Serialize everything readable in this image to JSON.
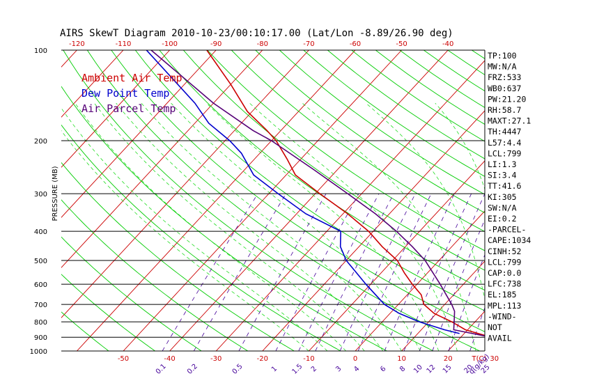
{
  "title": "AIRS SkewT Diagram 2010-10-23/00:10:17.00 (Lat/Lon -8.89/26.90 deg)",
  "colors": {
    "temperature": "#cc0000",
    "dewpoint": "#0000cc",
    "parcel": "#550077",
    "isotherm": "#cc0000",
    "dry_adiabat": "#00cc00",
    "moist_adiabat": "#22dd22",
    "mixing_ratio": "#440099",
    "isobar": "#000000"
  },
  "chart_data": {
    "type": "skewt",
    "title": "AIRS SkewT Diagram 2010-10-23/00:10:17.00 (Lat/Lon -8.89/26.90 deg)",
    "ylabel": "PRESSURE (MB)",
    "y_scale": "log",
    "ylim": [
      1000,
      100
    ],
    "pressure_ticks": [
      "100",
      "200",
      "300",
      "400",
      "500",
      "600",
      "700",
      "800",
      "900",
      "1000"
    ],
    "top_temperature_ticks": [
      "-120",
      "-110",
      "-100",
      "-90",
      "-80",
      "-70",
      "-60",
      "-50",
      "-40"
    ],
    "bottom_temperature_ticks": [
      "-50",
      "-40",
      "-30",
      "-20",
      "-10",
      "0",
      "10",
      "20",
      "30"
    ],
    "bottom_axis_unit": "T(C)",
    "mixing_ratio_ticks": [
      "0.1",
      "0.2",
      "0.5",
      "1",
      "1.5",
      "2",
      "3",
      "4",
      "6",
      "8",
      "10",
      "12",
      "15",
      "20",
      "25",
      "30",
      "40"
    ],
    "mixing_ratio_unit": "q(g/kg)",
    "legend": [
      {
        "name": "Ambient Air Temp",
        "color": "#cc0000"
      },
      {
        "name": "Dew Point Temp",
        "color": "#0000cc"
      },
      {
        "name": "Air Parcel Temp",
        "color": "#550077"
      }
    ],
    "series": [
      {
        "name": "Ambient Air Temp",
        "points": [
          {
            "p": 900,
            "t": 26.5
          },
          {
            "p": 850,
            "t": 19.5
          },
          {
            "p": 800,
            "t": 15
          },
          {
            "p": 750,
            "t": 9.5
          },
          {
            "p": 700,
            "t": 5.5
          },
          {
            "p": 650,
            "t": 3
          },
          {
            "p": 600,
            "t": -1
          },
          {
            "p": 550,
            "t": -5
          },
          {
            "p": 500,
            "t": -9
          },
          {
            "p": 450,
            "t": -15
          },
          {
            "p": 400,
            "t": -21
          },
          {
            "p": 350,
            "t": -29
          },
          {
            "p": 300,
            "t": -39
          },
          {
            "p": 260,
            "t": -48
          },
          {
            "p": 230,
            "t": -53
          },
          {
            "p": 200,
            "t": -59
          },
          {
            "p": 185,
            "t": -63
          },
          {
            "p": 160,
            "t": -71
          },
          {
            "p": 130,
            "t": -80
          },
          {
            "p": 100,
            "t": -92
          }
        ]
      },
      {
        "name": "Dew Point Temp",
        "points": [
          {
            "p": 875,
            "t": 19
          },
          {
            "p": 850,
            "t": 15
          },
          {
            "p": 800,
            "t": 8
          },
          {
            "p": 750,
            "t": 2
          },
          {
            "p": 700,
            "t": -3
          },
          {
            "p": 600,
            "t": -11
          },
          {
            "p": 500,
            "t": -20
          },
          {
            "p": 450,
            "t": -24
          },
          {
            "p": 400,
            "t": -27
          },
          {
            "p": 350,
            "t": -38
          },
          {
            "p": 300,
            "t": -48
          },
          {
            "p": 260,
            "t": -57
          },
          {
            "p": 220,
            "t": -64
          },
          {
            "p": 200,
            "t": -69
          },
          {
            "p": 175,
            "t": -77
          },
          {
            "p": 150,
            "t": -84
          },
          {
            "p": 100,
            "t": -105
          }
        ]
      },
      {
        "name": "Air Parcel Temp",
        "points": [
          {
            "p": 900,
            "t": 26.5
          },
          {
            "p": 850,
            "t": 17
          },
          {
            "p": 800,
            "t": 15.5
          },
          {
            "p": 738,
            "t": 13.5
          },
          {
            "p": 700,
            "t": 11.5
          },
          {
            "p": 600,
            "t": 5
          },
          {
            "p": 500,
            "t": -3
          },
          {
            "p": 450,
            "t": -8.5
          },
          {
            "p": 400,
            "t": -15
          },
          {
            "p": 350,
            "t": -23
          },
          {
            "p": 300,
            "t": -33
          },
          {
            "p": 250,
            "t": -45
          },
          {
            "p": 200,
            "t": -60
          },
          {
            "p": 185,
            "t": -66
          },
          {
            "p": 150,
            "t": -80
          },
          {
            "p": 100,
            "t": -104
          }
        ]
      }
    ]
  },
  "indices": [
    "TP:100",
    "MW:N/A",
    "FRZ:533",
    "WB0:637",
    "PW:21.20",
    "RH:58.7",
    "MAXT:27.1",
    "TH:4447",
    "L57:4.4",
    "LCL:799",
    "LI:1.3",
    "SI:3.4",
    "TT:41.6",
    "KI:305",
    "SW:N/A",
    "EI:0.2",
    "-PARCEL-",
    "CAPE:1034",
    "CINH:52",
    "LCL:799",
    "CAP:0.0",
    "LFC:738",
    "EL:185",
    "MPL:113",
    "-WIND-",
    "NOT",
    "AVAIL"
  ]
}
